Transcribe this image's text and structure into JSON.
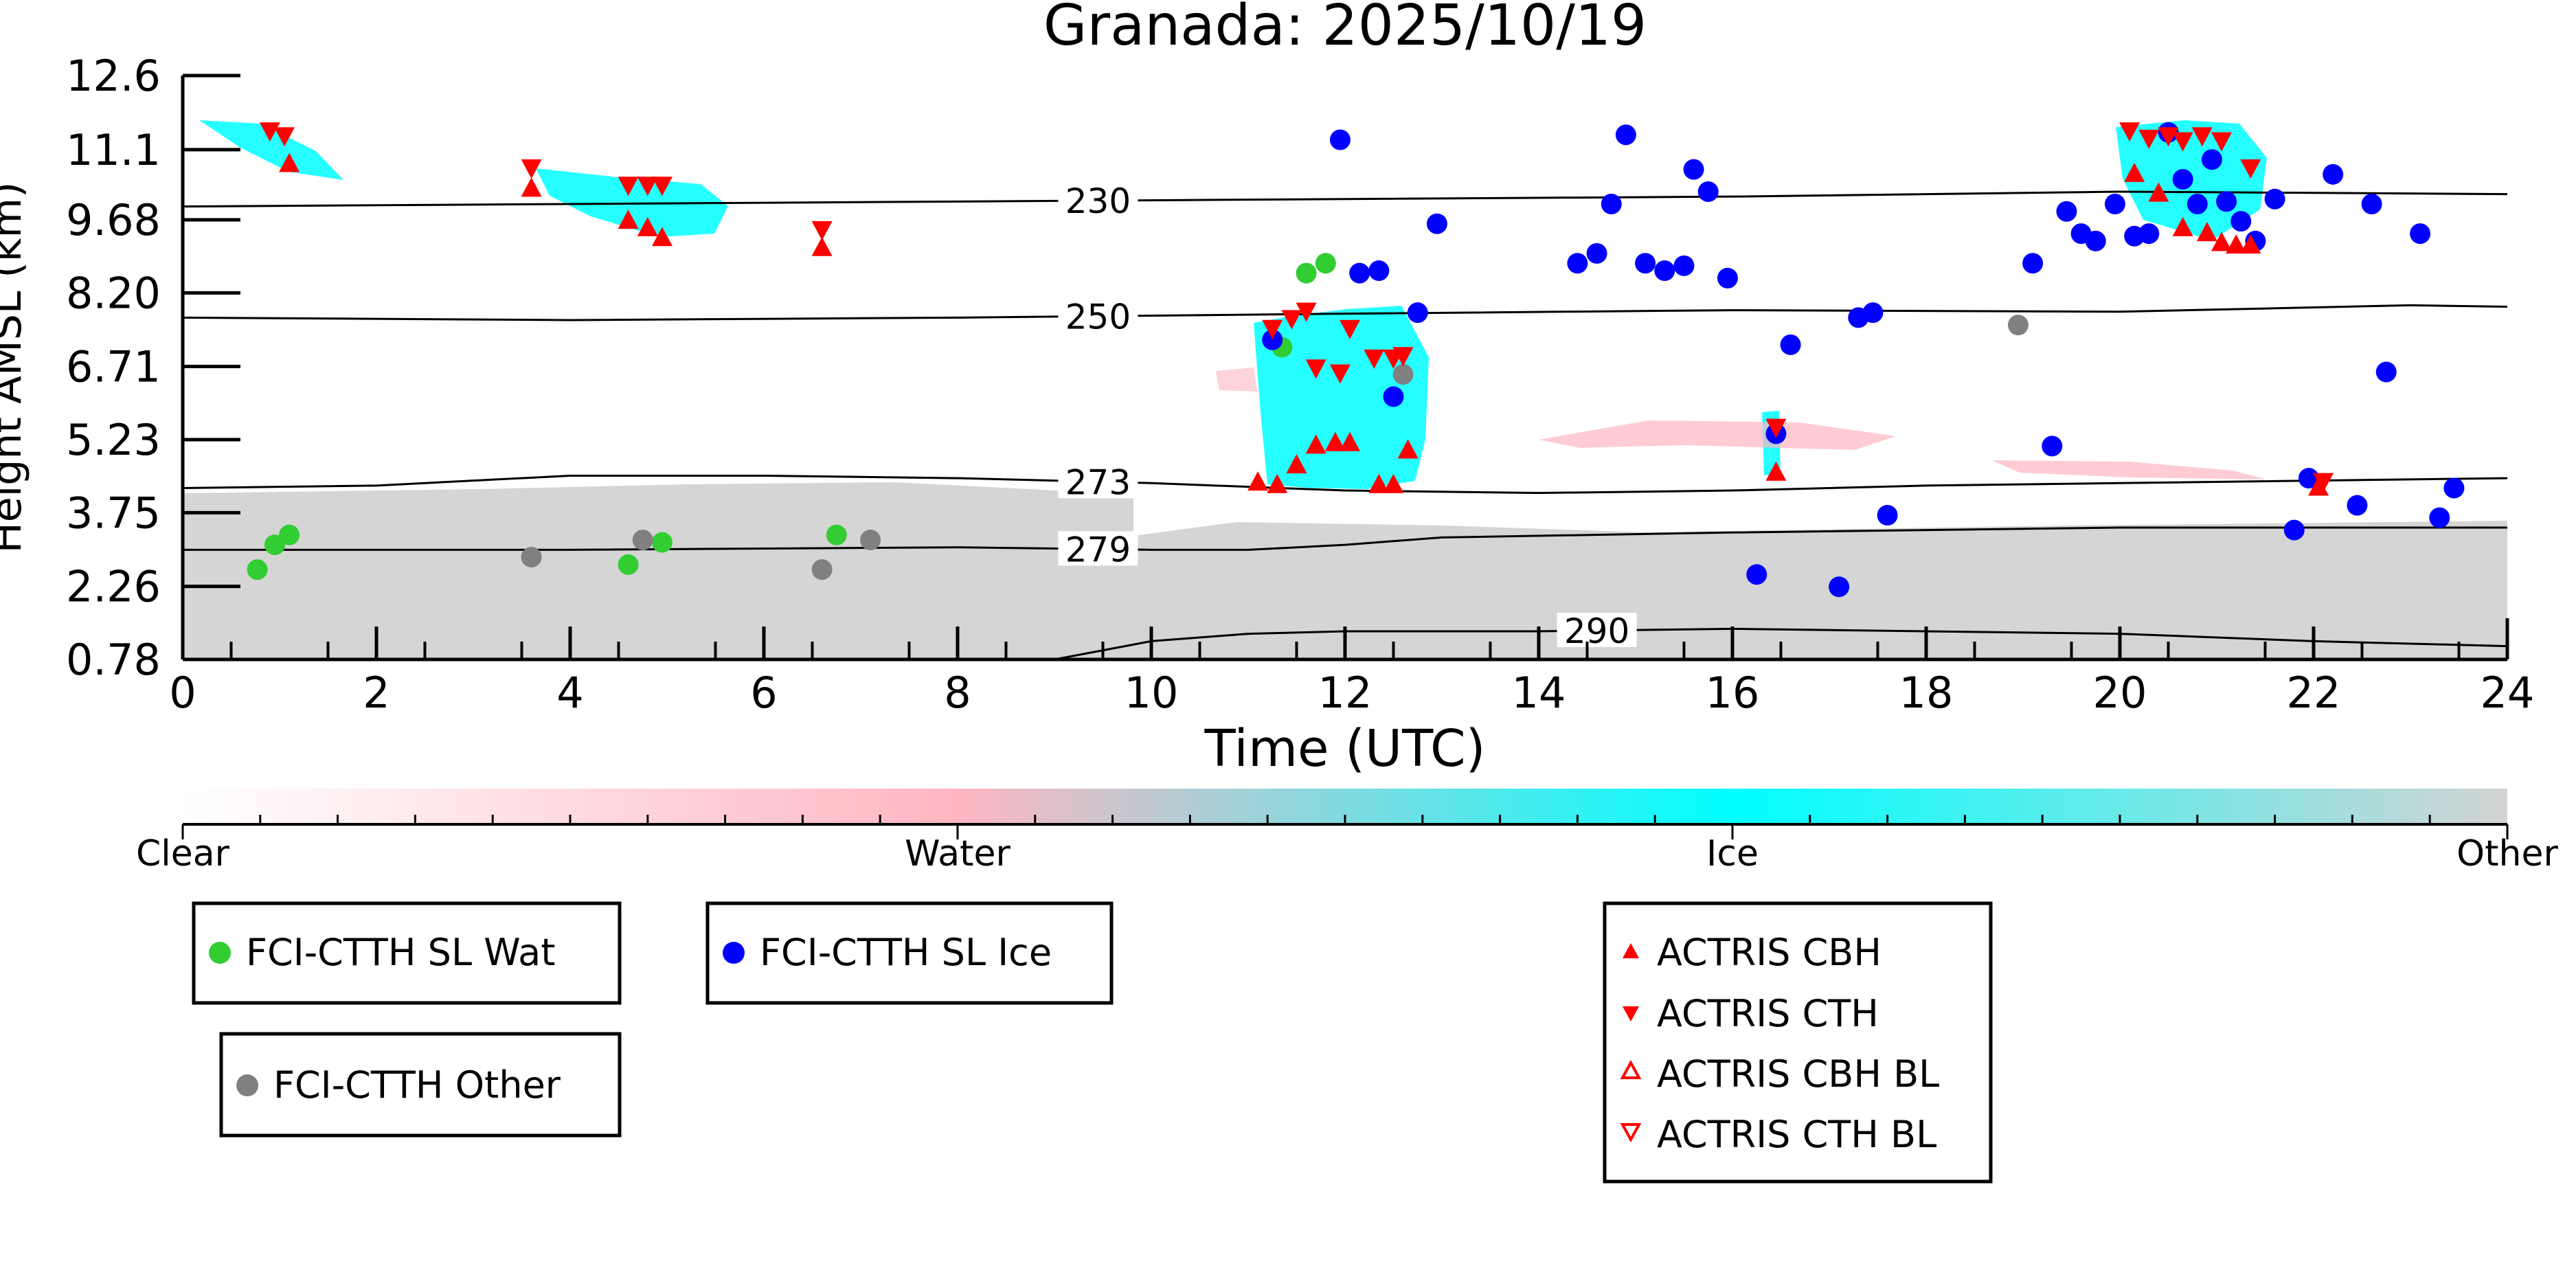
{
  "chart_data": {
    "type": "scatter",
    "title": "Granada: 2025/10/19",
    "xlabel": "Time (UTC)",
    "ylabel": "Height AMSL (km)",
    "xlim": [
      0,
      24
    ],
    "ylim": [
      0.78,
      12.6
    ],
    "x_ticks": [
      "0",
      "2",
      "4",
      "6",
      "8",
      "10",
      "12",
      "14",
      "16",
      "18",
      "20",
      "22",
      "24"
    ],
    "y_ticks": [
      {
        "value": 0.78,
        "label": "0.78"
      },
      {
        "value": 2.26,
        "label": "2.26"
      },
      {
        "value": 3.75,
        "label": "3.75"
      },
      {
        "value": 5.23,
        "label": "5.23"
      },
      {
        "value": 6.71,
        "label": "6.71"
      },
      {
        "value": 8.2,
        "label": "8.20"
      },
      {
        "value": 9.68,
        "label": "9.68"
      },
      {
        "value": 11.1,
        "label": "11.1"
      },
      {
        "value": 12.6,
        "label": "12.6"
      }
    ],
    "colorbar": {
      "labels": [
        "Clear",
        "Water",
        "Ice",
        "Other"
      ],
      "colors": [
        "#ffffff",
        "#ffb6c1",
        "#00ffff",
        "#d3d3d3"
      ]
    },
    "isotherms": [
      {
        "label": "230",
        "label_x": 9.45,
        "points": [
          [
            0,
            9.95
          ],
          [
            4,
            10.0
          ],
          [
            8,
            10.05
          ],
          [
            12,
            10.1
          ],
          [
            16,
            10.15
          ],
          [
            20,
            10.25
          ],
          [
            24,
            10.2
          ]
        ]
      },
      {
        "label": "250",
        "label_x": 9.45,
        "points": [
          [
            0,
            7.7
          ],
          [
            4,
            7.65
          ],
          [
            8,
            7.7
          ],
          [
            12,
            7.78
          ],
          [
            16,
            7.85
          ],
          [
            20,
            7.82
          ],
          [
            23,
            7.95
          ],
          [
            24,
            7.92
          ]
        ]
      },
      {
        "label": "273",
        "label_x": 9.45,
        "points": [
          [
            0,
            4.25
          ],
          [
            2,
            4.3
          ],
          [
            4,
            4.5
          ],
          [
            6,
            4.5
          ],
          [
            8,
            4.45
          ],
          [
            10,
            4.35
          ],
          [
            12,
            4.2
          ],
          [
            14,
            4.15
          ],
          [
            16,
            4.2
          ],
          [
            18,
            4.3
          ],
          [
            20,
            4.35
          ],
          [
            24,
            4.45
          ]
        ]
      },
      {
        "label": "279",
        "label_x": 9.45,
        "points": [
          [
            0,
            3.0
          ],
          [
            4,
            3.0
          ],
          [
            8,
            3.05
          ],
          [
            10,
            3.0
          ],
          [
            11,
            3.0
          ],
          [
            12,
            3.1
          ],
          [
            13,
            3.25
          ],
          [
            16,
            3.35
          ],
          [
            20,
            3.45
          ],
          [
            24,
            3.45
          ]
        ]
      },
      {
        "label": "290",
        "label_x": 14.6,
        "points": [
          [
            9,
            0.78
          ],
          [
            10,
            1.15
          ],
          [
            11,
            1.3
          ],
          [
            12,
            1.35
          ],
          [
            14,
            1.35
          ],
          [
            16,
            1.4
          ],
          [
            18,
            1.35
          ],
          [
            20,
            1.3
          ],
          [
            22,
            1.15
          ],
          [
            24,
            1.05
          ]
        ]
      }
    ],
    "series": [
      {
        "name": "FCI-CTTH SL Wat",
        "marker": "circle",
        "color": "#32cd32",
        "points": [
          [
            0.77,
            2.6
          ],
          [
            0.95,
            3.1
          ],
          [
            1.1,
            3.3
          ],
          [
            4.6,
            2.7
          ],
          [
            4.95,
            3.15
          ],
          [
            6.75,
            3.3
          ],
          [
            11.35,
            7.1
          ],
          [
            11.6,
            8.6
          ],
          [
            11.8,
            8.8
          ]
        ]
      },
      {
        "name": "FCI-CTTH SL Ice",
        "marker": "circle",
        "color": "#0000ff",
        "points": [
          [
            11.25,
            7.25
          ],
          [
            11.95,
            11.3
          ],
          [
            12.15,
            8.6
          ],
          [
            12.35,
            8.65
          ],
          [
            12.5,
            6.1
          ],
          [
            12.75,
            7.8
          ],
          [
            12.95,
            9.6
          ],
          [
            14.4,
            8.8
          ],
          [
            14.6,
            9.0
          ],
          [
            14.75,
            10.0
          ],
          [
            14.9,
            11.4
          ],
          [
            15.1,
            8.8
          ],
          [
            15.3,
            8.65
          ],
          [
            15.5,
            8.75
          ],
          [
            15.6,
            10.7
          ],
          [
            15.75,
            10.25
          ],
          [
            15.95,
            8.5
          ],
          [
            16.25,
            2.5
          ],
          [
            16.45,
            5.35
          ],
          [
            16.6,
            7.15
          ],
          [
            17.1,
            2.25
          ],
          [
            17.3,
            7.7
          ],
          [
            17.45,
            7.8
          ],
          [
            17.6,
            3.7
          ],
          [
            19.1,
            8.8
          ],
          [
            19.3,
            5.1
          ],
          [
            19.45,
            9.85
          ],
          [
            19.6,
            9.4
          ],
          [
            19.75,
            9.25
          ],
          [
            19.95,
            10.0
          ],
          [
            20.15,
            9.35
          ],
          [
            20.3,
            9.4
          ],
          [
            20.5,
            11.45
          ],
          [
            20.65,
            10.5
          ],
          [
            20.8,
            10.0
          ],
          [
            20.95,
            10.9
          ],
          [
            21.1,
            10.05
          ],
          [
            21.25,
            9.65
          ],
          [
            21.4,
            9.25
          ],
          [
            21.6,
            10.1
          ],
          [
            21.8,
            3.4
          ],
          [
            21.95,
            4.45
          ],
          [
            22.2,
            10.6
          ],
          [
            22.45,
            3.9
          ],
          [
            22.6,
            10.0
          ],
          [
            22.75,
            6.6
          ],
          [
            23.1,
            9.4
          ],
          [
            23.3,
            3.65
          ],
          [
            23.45,
            4.25
          ]
        ]
      },
      {
        "name": "FCI-CTTH Other",
        "marker": "circle",
        "color": "#808080",
        "points": [
          [
            3.6,
            2.85
          ],
          [
            4.75,
            3.2
          ],
          [
            6.6,
            2.6
          ],
          [
            7.1,
            3.2
          ],
          [
            12.6,
            6.55
          ],
          [
            18.95,
            7.55
          ]
        ]
      },
      {
        "name": "ACTRIS CBH",
        "marker": "triangle-up",
        "color": "#ff0000",
        "points": [
          [
            1.1,
            10.8
          ],
          [
            3.6,
            10.3
          ],
          [
            4.6,
            9.65
          ],
          [
            4.8,
            9.5
          ],
          [
            4.95,
            9.3
          ],
          [
            6.6,
            9.1
          ],
          [
            11.1,
            4.35
          ],
          [
            11.3,
            4.3
          ],
          [
            11.5,
            4.7
          ],
          [
            11.7,
            5.1
          ],
          [
            11.9,
            5.15
          ],
          [
            12.05,
            5.15
          ],
          [
            12.35,
            4.3
          ],
          [
            12.5,
            4.3
          ],
          [
            12.65,
            5.0
          ],
          [
            16.45,
            4.55
          ],
          [
            20.15,
            10.6
          ],
          [
            20.4,
            10.2
          ],
          [
            20.65,
            9.5
          ],
          [
            20.9,
            9.4
          ],
          [
            21.05,
            9.2
          ],
          [
            21.2,
            9.15
          ],
          [
            21.35,
            9.15
          ],
          [
            22.05,
            4.25
          ]
        ]
      },
      {
        "name": "ACTRIS CTH",
        "marker": "triangle-down",
        "color": "#ff0000",
        "points": [
          [
            0.9,
            11.5
          ],
          [
            1.05,
            11.4
          ],
          [
            3.6,
            10.75
          ],
          [
            4.6,
            10.4
          ],
          [
            4.8,
            10.4
          ],
          [
            4.95,
            10.4
          ],
          [
            6.6,
            9.5
          ],
          [
            11.25,
            7.5
          ],
          [
            11.45,
            7.7
          ],
          [
            11.6,
            7.85
          ],
          [
            11.7,
            6.7
          ],
          [
            11.95,
            6.6
          ],
          [
            12.05,
            7.5
          ],
          [
            12.3,
            6.9
          ],
          [
            12.5,
            6.9
          ],
          [
            12.6,
            6.95
          ],
          [
            16.45,
            5.5
          ],
          [
            20.1,
            11.5
          ],
          [
            20.3,
            11.35
          ],
          [
            20.5,
            11.4
          ],
          [
            20.65,
            11.3
          ],
          [
            20.85,
            11.4
          ],
          [
            21.05,
            11.3
          ],
          [
            21.35,
            10.75
          ],
          [
            22.1,
            4.4
          ]
        ]
      },
      {
        "name": "ACTRIS CBH BL",
        "marker": "triangle-up-open",
        "color": "#ff0000",
        "points": []
      },
      {
        "name": "ACTRIS CTH BL",
        "marker": "triangle-down-open",
        "color": "#ff0000",
        "points": []
      }
    ],
    "legends": [
      {
        "entries": [
          "FCI-CTTH SL Wat"
        ]
      },
      {
        "entries": [
          "FCI-CTTH SL Ice"
        ]
      },
      {
        "entries": [
          "FCI-CTTH Other"
        ]
      },
      {
        "entries": [
          "ACTRIS CBH",
          "ACTRIS CTH",
          "ACTRIS CBH BL",
          "ACTRIS CTH BL"
        ]
      }
    ]
  }
}
